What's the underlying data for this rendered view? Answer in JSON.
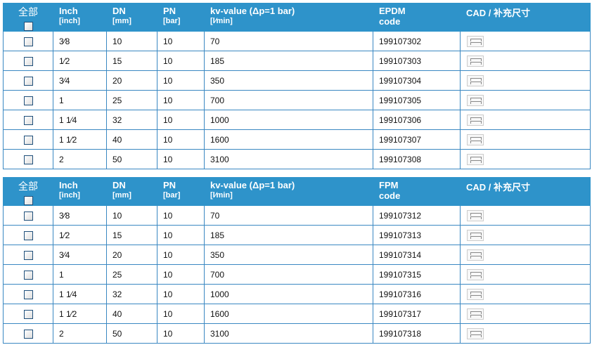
{
  "headers": {
    "select_all": "全部",
    "inch": "Inch",
    "inch_unit": "[inch]",
    "dn": "DN",
    "dn_unit": "[mm]",
    "pn": "PN",
    "pn_unit": "[bar]",
    "kv": "kv-value (Δp=1 bar)",
    "kv_unit": "[l⁄min]",
    "code_suffix": "code",
    "cad": "CAD / 补充尺寸"
  },
  "tables": [
    {
      "material": "EPDM",
      "rows": [
        {
          "inch": "3⁄8",
          "dn": "10",
          "pn": "10",
          "kv": "70",
          "code": "199107302"
        },
        {
          "inch": "1⁄2",
          "dn": "15",
          "pn": "10",
          "kv": "185",
          "code": "199107303"
        },
        {
          "inch": "3⁄4",
          "dn": "20",
          "pn": "10",
          "kv": "350",
          "code": "199107304"
        },
        {
          "inch": "1",
          "dn": "25",
          "pn": "10",
          "kv": "700",
          "code": "199107305"
        },
        {
          "inch": "1 1⁄4",
          "dn": "32",
          "pn": "10",
          "kv": "1000",
          "code": "199107306"
        },
        {
          "inch": "1 1⁄2",
          "dn": "40",
          "pn": "10",
          "kv": "1600",
          "code": "199107307"
        },
        {
          "inch": "2",
          "dn": "50",
          "pn": "10",
          "kv": "3100",
          "code": "199107308"
        }
      ]
    },
    {
      "material": "FPM",
      "rows": [
        {
          "inch": "3⁄8",
          "dn": "10",
          "pn": "10",
          "kv": "70",
          "code": "199107312"
        },
        {
          "inch": "1⁄2",
          "dn": "15",
          "pn": "10",
          "kv": "185",
          "code": "199107313"
        },
        {
          "inch": "3⁄4",
          "dn": "20",
          "pn": "10",
          "kv": "350",
          "code": "199107314"
        },
        {
          "inch": "1",
          "dn": "25",
          "pn": "10",
          "kv": "700",
          "code": "199107315"
        },
        {
          "inch": "1 1⁄4",
          "dn": "32",
          "pn": "10",
          "kv": "1000",
          "code": "199107316"
        },
        {
          "inch": "1 1⁄2",
          "dn": "40",
          "pn": "10",
          "kv": "1600",
          "code": "199107317"
        },
        {
          "inch": "2",
          "dn": "50",
          "pn": "10",
          "kv": "3100",
          "code": "199107318"
        }
      ]
    }
  ],
  "colors": {
    "header_bg": "#2e93ca",
    "border": "#3a88c2"
  },
  "icons": {
    "cad": "cad-dimension-icon"
  }
}
